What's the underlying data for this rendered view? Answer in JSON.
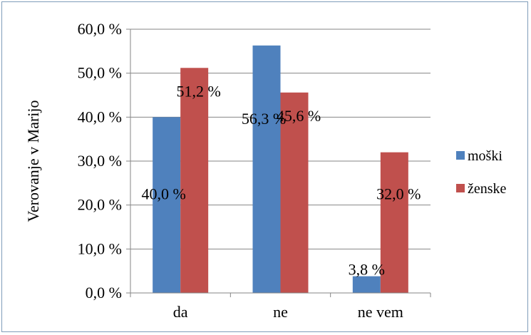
{
  "chart_data": {
    "type": "bar",
    "categories": [
      "da",
      "ne",
      "ne vem"
    ],
    "series": [
      {
        "name": "moški",
        "values": [
          40.0,
          56.3,
          3.8
        ],
        "labels": [
          "40,0 %",
          "56,3 %",
          "3,8 %"
        ],
        "color": "#4f81bd"
      },
      {
        "name": "ženske",
        "values": [
          51.2,
          45.6,
          32.0
        ],
        "labels": [
          "51,2 %",
          "45,6 %",
          "32,0 %"
        ],
        "color": "#c0504d"
      }
    ],
    "ylabel": "Verovanje v Marijo",
    "xlabel": "",
    "ylim": [
      0,
      60
    ],
    "yticks": [
      0,
      10,
      20,
      30,
      40,
      50,
      60
    ],
    "ytick_labels": [
      "0,0 %",
      "10,0 %",
      "20,0 %",
      "30,0 %",
      "40,0 %",
      "50,0 %",
      "60,0 %"
    ],
    "grid": true,
    "legend_position": "right",
    "gridline_color": "#868686",
    "axis_color": "#868686"
  }
}
